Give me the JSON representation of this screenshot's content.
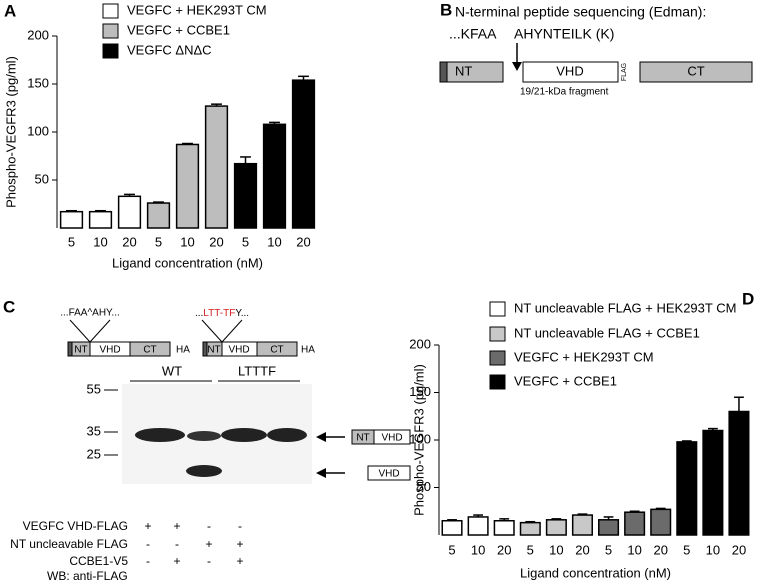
{
  "chart_data": [
    {
      "type": "bar",
      "panel_label": "A",
      "y_label": "Phospho-VEGFR3 (pg/ml)",
      "x_label": "Ligand concentration (nM)",
      "categories": [
        "5",
        "10",
        "20",
        "5",
        "10",
        "20",
        "5",
        "10",
        "20"
      ],
      "ylim": [
        0,
        200
      ],
      "yticks": [
        50,
        100,
        150,
        200
      ],
      "series": [
        {
          "name": "VEGFC + HEK293T CM",
          "color": "#ffffff",
          "values": [
            17,
            17,
            33,
            null,
            null,
            null,
            null,
            null,
            null
          ],
          "errors": [
            1,
            1,
            2,
            null,
            null,
            null,
            null,
            null,
            null
          ]
        },
        {
          "name": "VEGFC + CCBE1",
          "color": "#bdbdbd",
          "values": [
            null,
            null,
            null,
            26,
            87,
            127,
            null,
            null,
            null
          ],
          "errors": [
            null,
            null,
            null,
            1,
            1,
            2,
            null,
            null,
            null
          ]
        },
        {
          "name": "VEGFC ΔNΔC",
          "color": "#000000",
          "values": [
            null,
            null,
            null,
            null,
            null,
            null,
            67,
            108,
            154
          ],
          "errors": [
            null,
            null,
            null,
            null,
            null,
            null,
            7,
            2,
            4
          ]
        }
      ]
    },
    {
      "type": "bar",
      "panel_label": "D",
      "y_label": "Phospho-VEGFR3 (pg/ml)",
      "x_label": "Ligand concentration (nM)",
      "categories": [
        "5",
        "10",
        "20",
        "5",
        "10",
        "20",
        "5",
        "10",
        "20",
        "5",
        "10",
        "20"
      ],
      "ylim": [
        0,
        200
      ],
      "yticks": [
        50,
        100,
        150,
        200
      ],
      "series": [
        {
          "name": "NT uncleavable FLAG + HEK293T CM",
          "color": "#ffffff",
          "values": [
            15,
            19,
            15,
            null,
            null,
            null,
            null,
            null,
            null,
            null,
            null,
            null
          ],
          "errors": [
            1,
            2,
            2,
            null,
            null,
            null,
            null,
            null,
            null,
            null,
            null,
            null
          ]
        },
        {
          "name": "NT uncleavable FLAG + CCBE1",
          "color": "#c8c8c8",
          "values": [
            null,
            null,
            null,
            13,
            16,
            21,
            null,
            null,
            null,
            null,
            null,
            null
          ],
          "errors": [
            null,
            null,
            null,
            1,
            1,
            1,
            null,
            null,
            null,
            null,
            null,
            null
          ]
        },
        {
          "name": "VEGFC + HEK293T CM",
          "color": "#6b6b6b",
          "values": [
            null,
            null,
            null,
            null,
            null,
            null,
            16,
            24,
            27,
            null,
            null,
            null
          ],
          "errors": [
            null,
            null,
            null,
            null,
            null,
            null,
            3,
            1,
            1,
            null,
            null,
            null
          ]
        },
        {
          "name": "VEGFC + CCBE1",
          "color": "#000000",
          "values": [
            null,
            null,
            null,
            null,
            null,
            null,
            null,
            null,
            null,
            98,
            110,
            130
          ],
          "errors": [
            null,
            null,
            null,
            null,
            null,
            null,
            null,
            null,
            null,
            1,
            2,
            15
          ]
        }
      ]
    }
  ],
  "panel_b": {
    "label": "B",
    "title": "N-terminal peptide sequencing (Edman):",
    "seq_left": "...KFAA",
    "seq_right": "AHYNTEILK (K)",
    "domains": [
      "NT",
      "VHD",
      "CT"
    ],
    "tag": "FLAG",
    "fragment": "19/21-kDa fragment"
  },
  "panel_c": {
    "label": "C",
    "site_wt": "...FAA^AHY...",
    "site_mut": [
      "...",
      "LTT-TF",
      "Y..."
    ],
    "domains": [
      "NT",
      "VHD",
      "CT"
    ],
    "tag": "HA",
    "lanes": [
      "WT",
      "LTTTF"
    ],
    "markers": [
      "55",
      "35",
      "25"
    ],
    "band_labels": [
      [
        "NT",
        "VHD"
      ],
      [
        "VHD"
      ]
    ],
    "rows": [
      {
        "label": "VEGFC VHD-FLAG",
        "signs": [
          "+",
          "+",
          "-",
          "-"
        ]
      },
      {
        "label": "NT uncleavable FLAG",
        "signs": [
          "-",
          "-",
          "+",
          "+"
        ]
      },
      {
        "label": "CCBE1-V5",
        "signs": [
          "-",
          "+",
          "-",
          "+"
        ]
      }
    ],
    "blot": "WB: anti-FLAG"
  }
}
